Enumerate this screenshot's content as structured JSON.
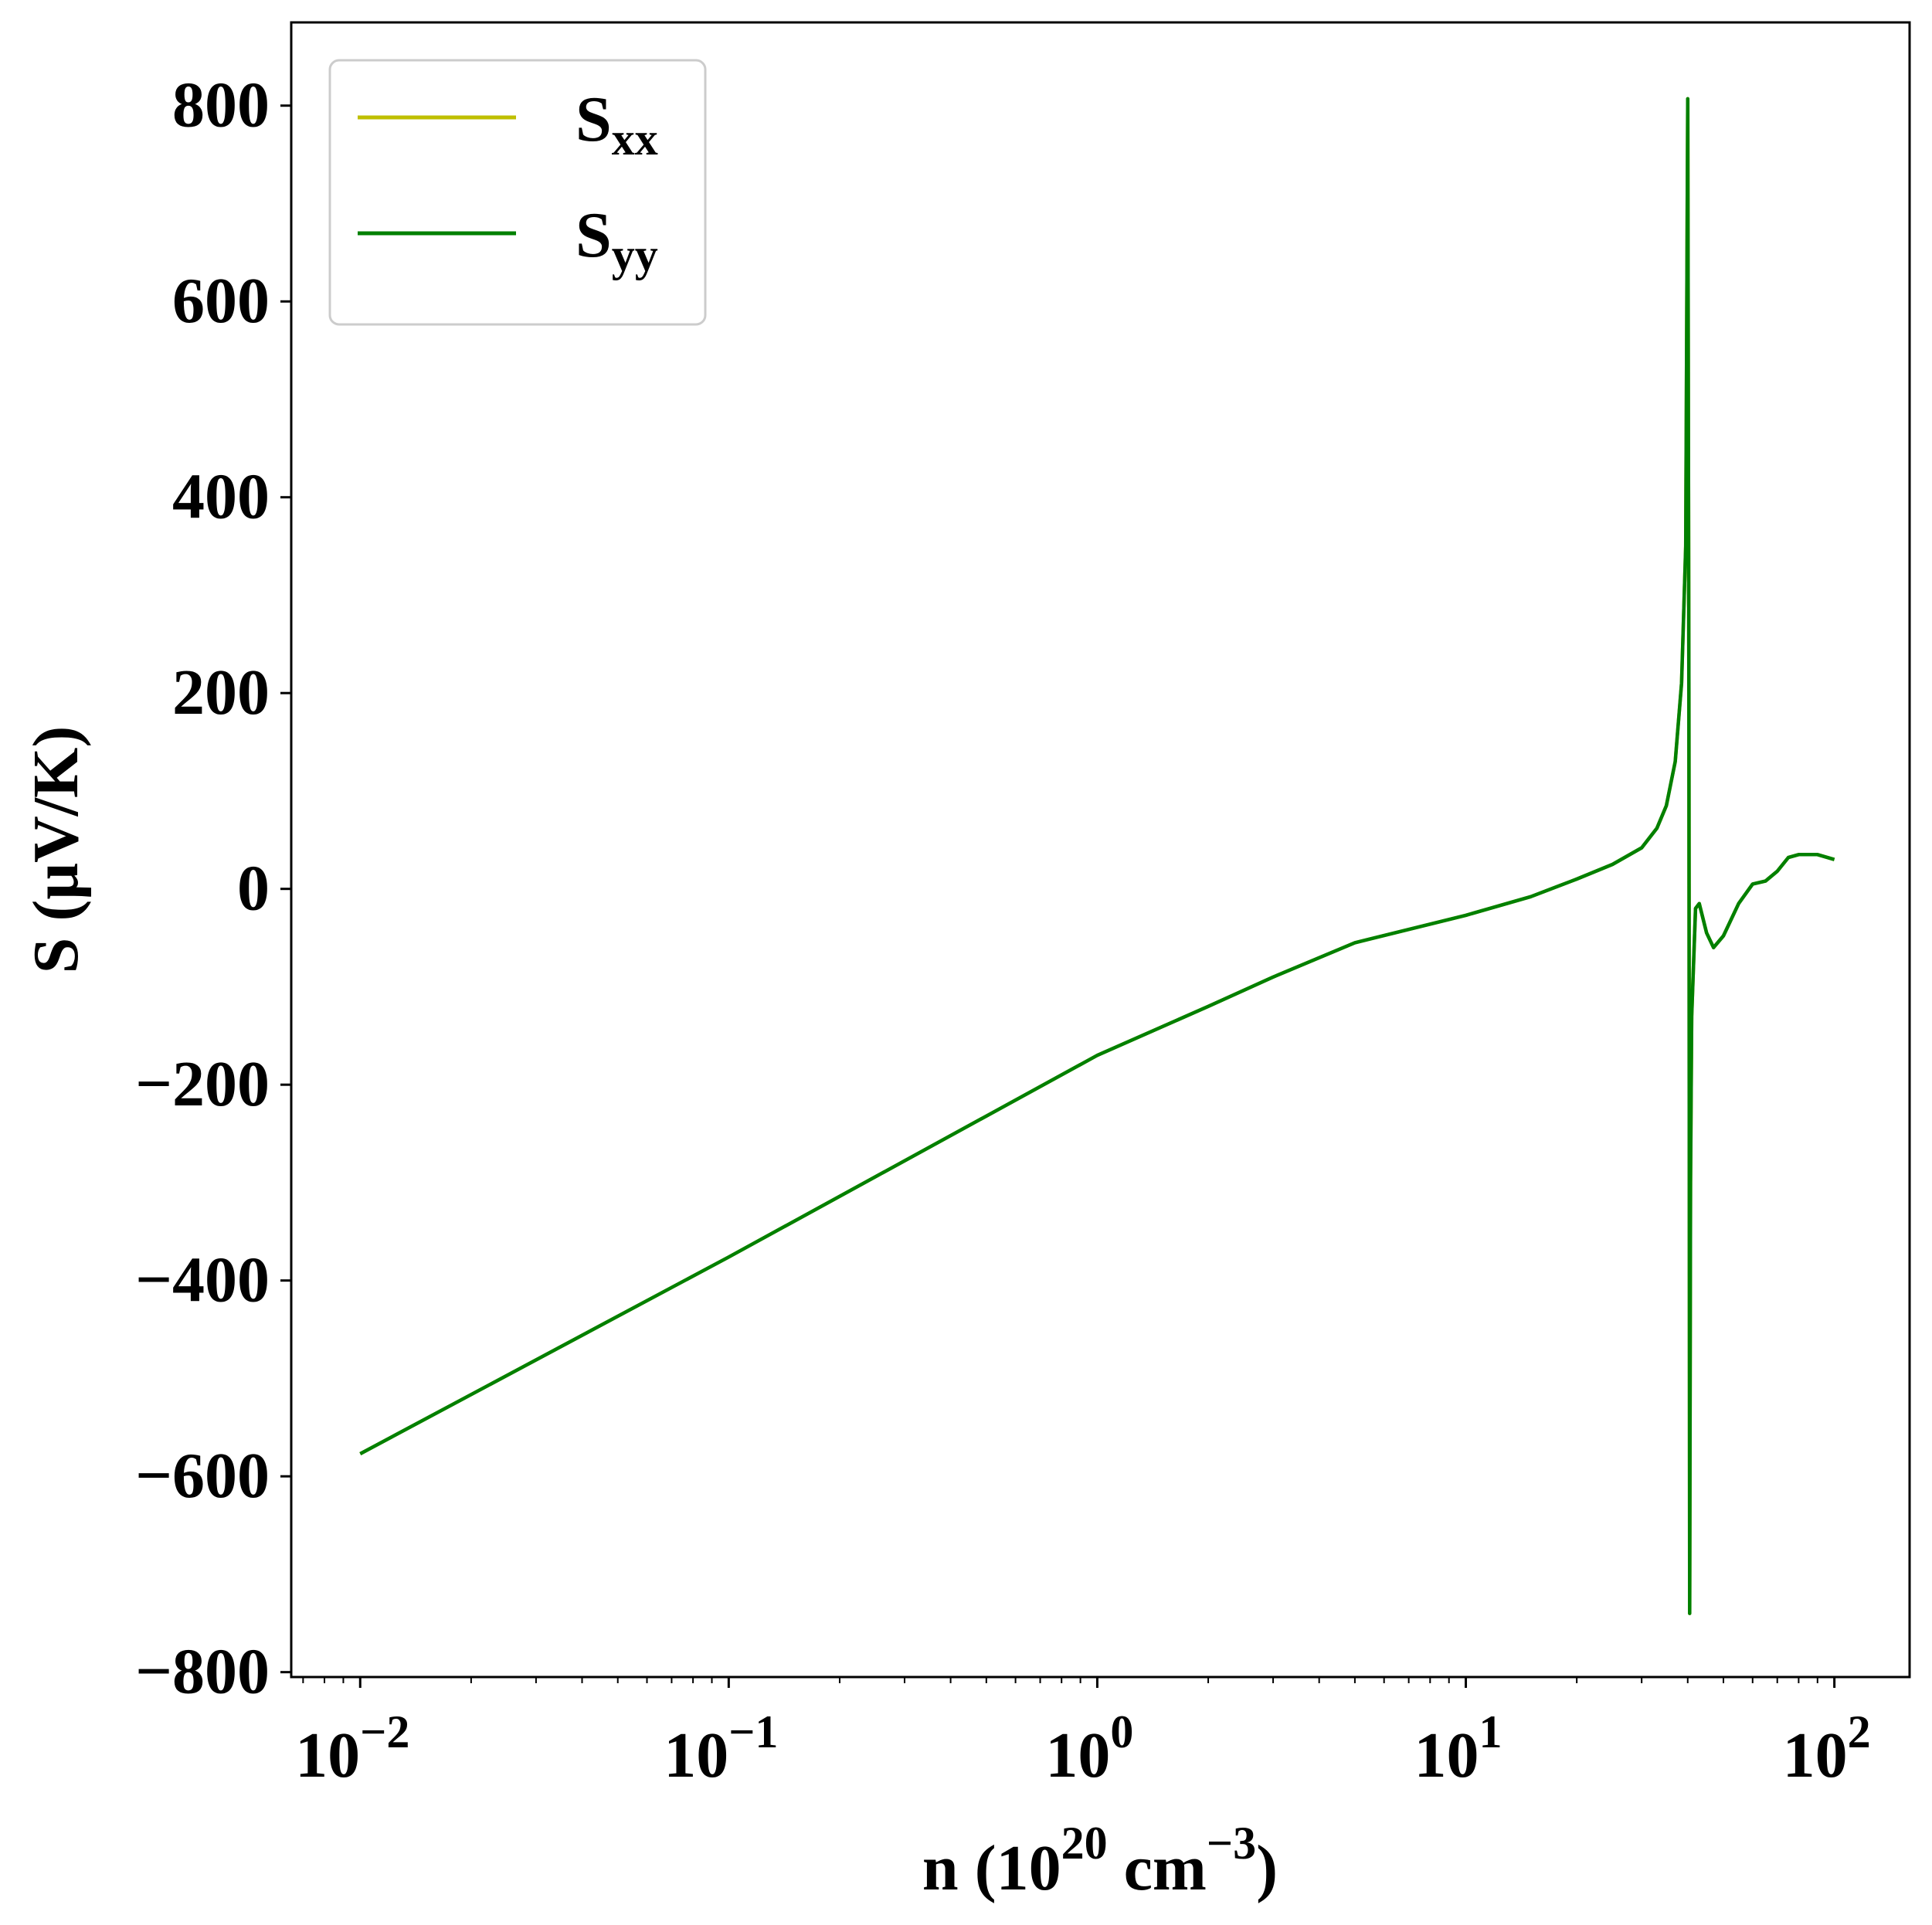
{
  "chart_data": {
    "type": "line",
    "x_scale": "log",
    "xlim": [
      0.0065,
      160
    ],
    "ylim": [
      -805,
      885
    ],
    "xlabel": {
      "base": "n (10",
      "sup1": "20",
      "mid": " cm",
      "sup2": "−3",
      "end": ")"
    },
    "ylabel": "S (μV/K)",
    "x_ticks": [
      {
        "value": 0.01,
        "base": "10",
        "exp": "−2"
      },
      {
        "value": 0.1,
        "base": "10",
        "exp": "−1"
      },
      {
        "value": 1,
        "base": "10",
        "exp": "0"
      },
      {
        "value": 10,
        "base": "10",
        "exp": "1"
      },
      {
        "value": 100,
        "base": "10",
        "exp": "2"
      }
    ],
    "y_ticks": [
      {
        "value": 800,
        "label": "800"
      },
      {
        "value": 600,
        "label": "600"
      },
      {
        "value": 400,
        "label": "400"
      },
      {
        "value": 200,
        "label": "200"
      },
      {
        "value": 0,
        "label": "0"
      },
      {
        "value": -200,
        "label": "−200"
      },
      {
        "value": -400,
        "label": "−400"
      },
      {
        "value": -600,
        "label": "−600"
      },
      {
        "value": -800,
        "label": "−800"
      }
    ],
    "grid": false,
    "legend_position": "upper-left",
    "series": [
      {
        "name": "S",
        "sub": "xx",
        "color": "#bfbf00",
        "x": [
          0.01,
          0.1,
          1,
          2,
          3,
          5,
          10,
          15,
          20,
          25,
          30,
          33,
          35,
          37,
          38.5,
          39.5,
          40,
          40.3,
          40.5,
          40.7,
          41,
          42,
          43,
          45,
          47,
          50,
          55,
          60,
          65,
          70,
          75,
          80,
          90,
          100
        ],
        "y": [
          -577,
          -376,
          -170,
          -120,
          -90,
          -55,
          -27,
          -8,
          10,
          25,
          42,
          62,
          85,
          130,
          210,
          350,
          807,
          200,
          -740,
          -300,
          -130,
          -20,
          -15,
          -45,
          -60,
          -48,
          -15,
          5,
          8,
          18,
          32,
          35,
          35,
          30
        ]
      },
      {
        "name": "S",
        "sub": "yy",
        "color": "#008000",
        "x": [
          0.01,
          0.1,
          1,
          2,
          3,
          5,
          10,
          15,
          20,
          25,
          30,
          33,
          35,
          37,
          38.5,
          39.5,
          40,
          40.3,
          40.5,
          40.7,
          41,
          42,
          43,
          45,
          47,
          50,
          55,
          60,
          65,
          70,
          75,
          80,
          90,
          100
        ],
        "y": [
          -577,
          -376,
          -170,
          -120,
          -90,
          -55,
          -27,
          -8,
          10,
          25,
          42,
          62,
          85,
          130,
          210,
          350,
          807,
          200,
          -740,
          -300,
          -130,
          -20,
          -15,
          -45,
          -60,
          -48,
          -15,
          5,
          8,
          18,
          32,
          35,
          35,
          30
        ]
      }
    ]
  }
}
